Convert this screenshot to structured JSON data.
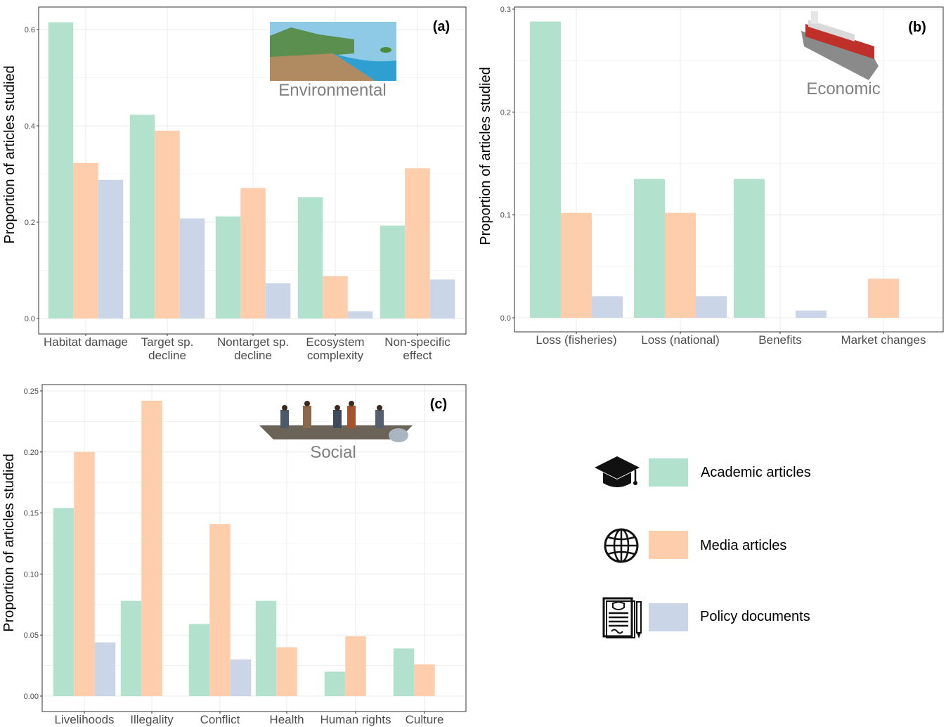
{
  "colors": {
    "academic": "#b2e2cd",
    "media": "#fdcdac",
    "policy": "#cbd5e8",
    "grid": "#ebebeb",
    "panel_border": "#333333",
    "illustration_label": "#808080"
  },
  "legend": [
    {
      "label": "Academic articles",
      "color": "#b2e2cd",
      "icon": "graduation-cap-icon"
    },
    {
      "label": "Media articles",
      "color": "#fdcdac",
      "icon": "globe-icon"
    },
    {
      "label": "Policy documents",
      "color": "#cbd5e8",
      "icon": "document-icon"
    }
  ],
  "chart_data": [
    {
      "type": "bar",
      "panel_label": "(a)",
      "illustration_label": "Environmental",
      "illustration_icon": "coastline-landscape-icon",
      "ylabel": "Proportion of articles studied",
      "ylim": [
        0,
        0.62
      ],
      "yticks": [
        "0.0",
        "0.2",
        "0.4",
        "0.6"
      ],
      "ytick_values": [
        0,
        0.2,
        0.4,
        0.6
      ],
      "categories": [
        [
          "Habitat damage"
        ],
        [
          "Target sp.",
          "decline"
        ],
        [
          "Nontarget sp.",
          "decline"
        ],
        [
          "Ecosystem",
          "complexity"
        ],
        [
          "Non-specific",
          "effect"
        ]
      ],
      "series": [
        {
          "name": "Academic articles",
          "values": [
            0.615,
            0.423,
            0.212,
            0.252,
            0.193
          ]
        },
        {
          "name": "Media articles",
          "values": [
            0.323,
            0.39,
            0.271,
            0.088,
            0.312
          ]
        },
        {
          "name": "Policy documents",
          "values": [
            0.288,
            0.208,
            0.073,
            0.015,
            0.081
          ]
        }
      ]
    },
    {
      "type": "bar",
      "panel_label": "(b)",
      "illustration_label": "Economic",
      "illustration_icon": "container-ship-icon",
      "ylabel": "Proportion of articles studied",
      "ylim": [
        0,
        0.3
      ],
      "yticks": [
        "0.0",
        "0.1",
        "0.2",
        "0.3"
      ],
      "ytick_values": [
        0,
        0.1,
        0.2,
        0.3
      ],
      "categories": [
        [
          "Loss (fisheries)"
        ],
        [
          "Loss (national)"
        ],
        [
          "Benefits"
        ],
        [
          "Market changes"
        ]
      ],
      "series": [
        {
          "name": "Academic articles",
          "values": [
            0.288,
            0.135,
            0.135,
            0
          ]
        },
        {
          "name": "Media articles",
          "values": [
            0.102,
            0.102,
            0,
            0.038
          ]
        },
        {
          "name": "Policy documents",
          "values": [
            0.021,
            0.021,
            0.007,
            0
          ]
        }
      ]
    },
    {
      "type": "bar",
      "panel_label": "(c)",
      "illustration_label": "Social",
      "illustration_icon": "fishing-boat-icon",
      "ylabel": "Proportion of articles studied",
      "ylim": [
        0,
        0.25
      ],
      "yticks": [
        "0.00",
        "0.05",
        "0.10",
        "0.15",
        "0.20",
        "0.25"
      ],
      "ytick_values": [
        0,
        0.05,
        0.1,
        0.15,
        0.2,
        0.25
      ],
      "categories": [
        [
          "Livelihoods"
        ],
        [
          "Illegality"
        ],
        [
          "Conflict"
        ],
        [
          "Health"
        ],
        [
          "Human rights"
        ],
        [
          "Culture"
        ]
      ],
      "series": [
        {
          "name": "Academic articles",
          "values": [
            0.154,
            0.078,
            0.059,
            0.078,
            0.02,
            0.039
          ]
        },
        {
          "name": "Media articles",
          "values": [
            0.2,
            0.242,
            0.141,
            0.04,
            0.049,
            0.026
          ]
        },
        {
          "name": "Policy documents",
          "values": [
            0.044,
            0,
            0.03,
            0,
            0,
            0
          ]
        }
      ]
    }
  ]
}
